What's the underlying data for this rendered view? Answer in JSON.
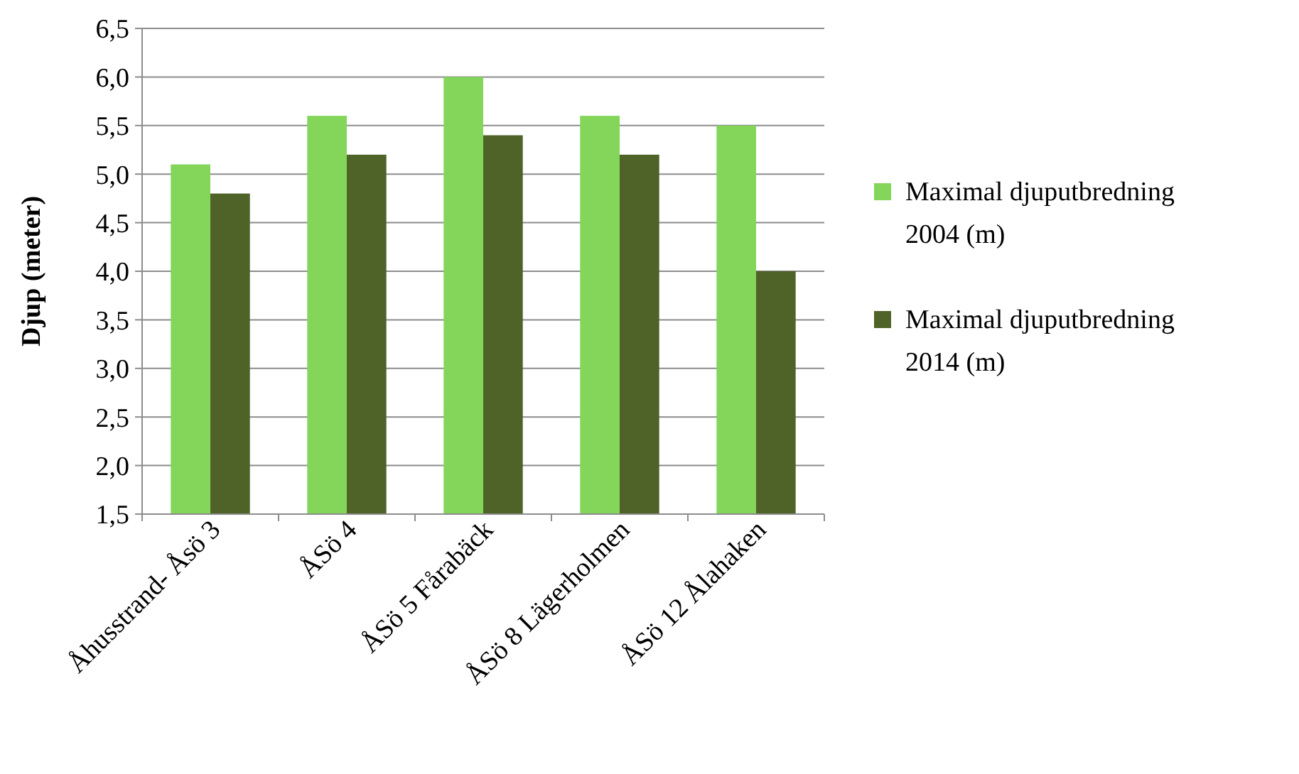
{
  "chart_data": {
    "type": "bar",
    "ylabel": "Djup (meter)",
    "categories": [
      "Åhusstrand- Åsö 3",
      "ÅSö 4",
      "ÅSö 5 Fårabäck",
      "ÅSö 8 Lägerholmen",
      "ÅSö 12 Ålahaken"
    ],
    "series": [
      {
        "name": "Maximal djuputbredning 2004 (m)",
        "color": "#83d65a",
        "values": [
          5.1,
          5.6,
          6.0,
          5.6,
          5.5
        ]
      },
      {
        "name": "Maximal djuputbredning 2014 (m)",
        "color": "#4f6228",
        "values": [
          4.8,
          5.2,
          5.4,
          5.2,
          4.0
        ]
      }
    ],
    "ylim": [
      1.5,
      6.5
    ],
    "yticks": [
      {
        "value": 1.5,
        "label": "1,5"
      },
      {
        "value": 2,
        "label": "2,0"
      },
      {
        "value": 2.5,
        "label": "2,5"
      },
      {
        "value": 3,
        "label": "3,0"
      },
      {
        "value": 3.5,
        "label": "3,5"
      },
      {
        "value": 4,
        "label": "4,0"
      },
      {
        "value": 4.5,
        "label": "4,5"
      },
      {
        "value": 5,
        "label": "5,0"
      },
      {
        "value": 5.5,
        "label": "5,5"
      },
      {
        "value": 6,
        "label": "6,0"
      },
      {
        "value": 6.5,
        "label": "6,5"
      }
    ],
    "grid": "y",
    "legend": "right"
  }
}
